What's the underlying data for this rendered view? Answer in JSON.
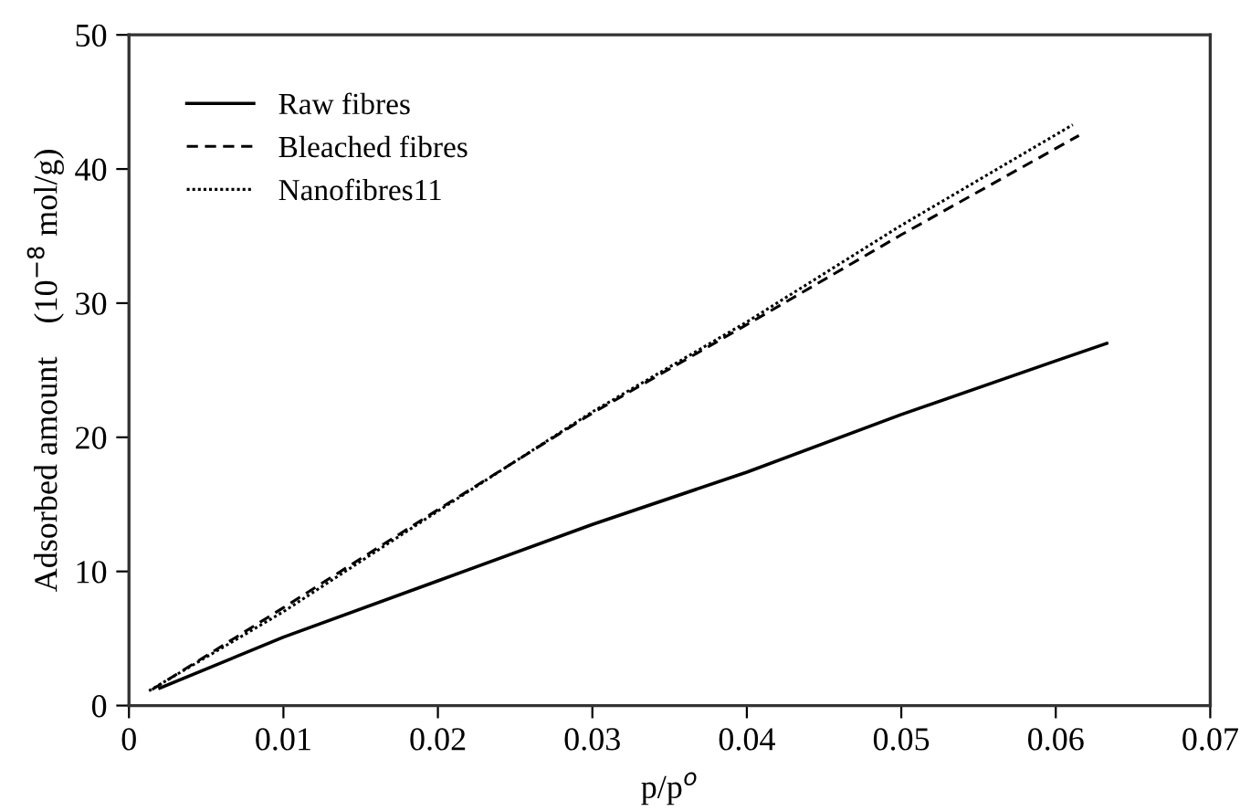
{
  "chart_data": {
    "type": "line",
    "xlabel": "p/p$^{o}$",
    "ylabel": "Adsorbed amount    (10$^{−8}$ mol/g)",
    "series": [
      {
        "name": "Raw fibres",
        "color": "#000000",
        "line_style": "solid",
        "x": [
          0.002,
          0.01,
          0.02,
          0.03,
          0.04,
          0.05,
          0.06,
          0.0633
        ],
        "values": [
          1.3,
          5.1,
          9.3,
          13.5,
          17.4,
          21.7,
          25.7,
          27.0
        ]
      },
      {
        "name": "Bleached fibres",
        "color": "#000000",
        "line_style": "dashed",
        "x": [
          0.0015,
          0.01,
          0.02,
          0.03,
          0.04,
          0.05,
          0.0615
        ],
        "values": [
          1.2,
          7.3,
          14.6,
          21.8,
          28.4,
          35.1,
          42.5
        ]
      },
      {
        "name": "Nanofibres11",
        "color": "#000000",
        "line_style": "dotted",
        "x": [
          0.0013,
          0.01,
          0.02,
          0.03,
          0.04,
          0.05,
          0.0611
        ],
        "values": [
          1.1,
          7.0,
          14.5,
          21.9,
          28.6,
          35.8,
          43.3
        ]
      }
    ],
    "xlim": [
      0,
      0.07
    ],
    "xticks": [
      0,
      0.01,
      0.02,
      0.03,
      0.04,
      0.05,
      0.06,
      0.07
    ],
    "ylim": [
      0,
      50
    ],
    "yticks": [
      0,
      10,
      20,
      30,
      40,
      50
    ],
    "grid": false,
    "legend": "top left",
    "marker": "none"
  }
}
